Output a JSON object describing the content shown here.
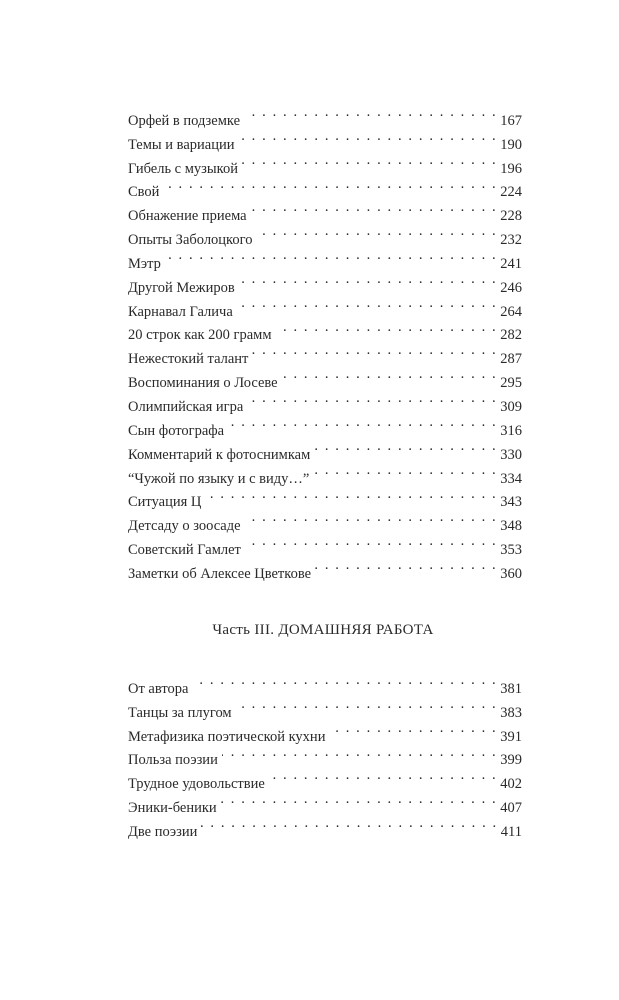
{
  "section2_entries": [
    {
      "title": "Орфей в подземке",
      "page": "167"
    },
    {
      "title": "Темы и вариации",
      "page": "190"
    },
    {
      "title": "Гибель с музыкой",
      "page": "196"
    },
    {
      "title": "Свой",
      "page": "224"
    },
    {
      "title": "Обнажение приема",
      "page": "228"
    },
    {
      "title": "Опыты Заболоцкого",
      "page": "232"
    },
    {
      "title": "Мэтр",
      "page": "241"
    },
    {
      "title": "Другой Межиров",
      "page": "246"
    },
    {
      "title": "Карнавал Галича",
      "page": "264"
    },
    {
      "title": "20 строк как 200 грамм",
      "page": "282"
    },
    {
      "title": "Нежестокий талант",
      "page": "287"
    },
    {
      "title": "Воспоминания о Лосеве",
      "page": "295"
    },
    {
      "title": "Олимпийская игра",
      "page": "309"
    },
    {
      "title": "Сын фотографа",
      "page": "316"
    },
    {
      "title": "Комментарий к фотоснимкам",
      "page": "330"
    },
    {
      "title": " “Чужой по языку и с виду…”",
      "page": "334"
    },
    {
      "title": "Ситуация Ц",
      "page": "343"
    },
    {
      "title": "Детсаду о зоосаде",
      "page": "348"
    },
    {
      "title": "Советский Гамлет",
      "page": "353"
    },
    {
      "title": "Заметки об Алексее Цветкове",
      "page": "360"
    }
  ],
  "part3": {
    "heading": "Часть III. ДОМАШНЯЯ РАБОТА",
    "entries": [
      {
        "title": "От автора",
        "page": "381"
      },
      {
        "title": "Танцы за плугом",
        "page": "383"
      },
      {
        "title": "Метафизика поэтической кухни",
        "page": "391"
      },
      {
        "title": "Польза поэзии",
        "page": "399"
      },
      {
        "title": "Трудное удовольствие",
        "page": "402"
      },
      {
        "title": "Эники-беники",
        "page": "407"
      },
      {
        "title": "Две поэзии",
        "page": "411"
      }
    ]
  }
}
